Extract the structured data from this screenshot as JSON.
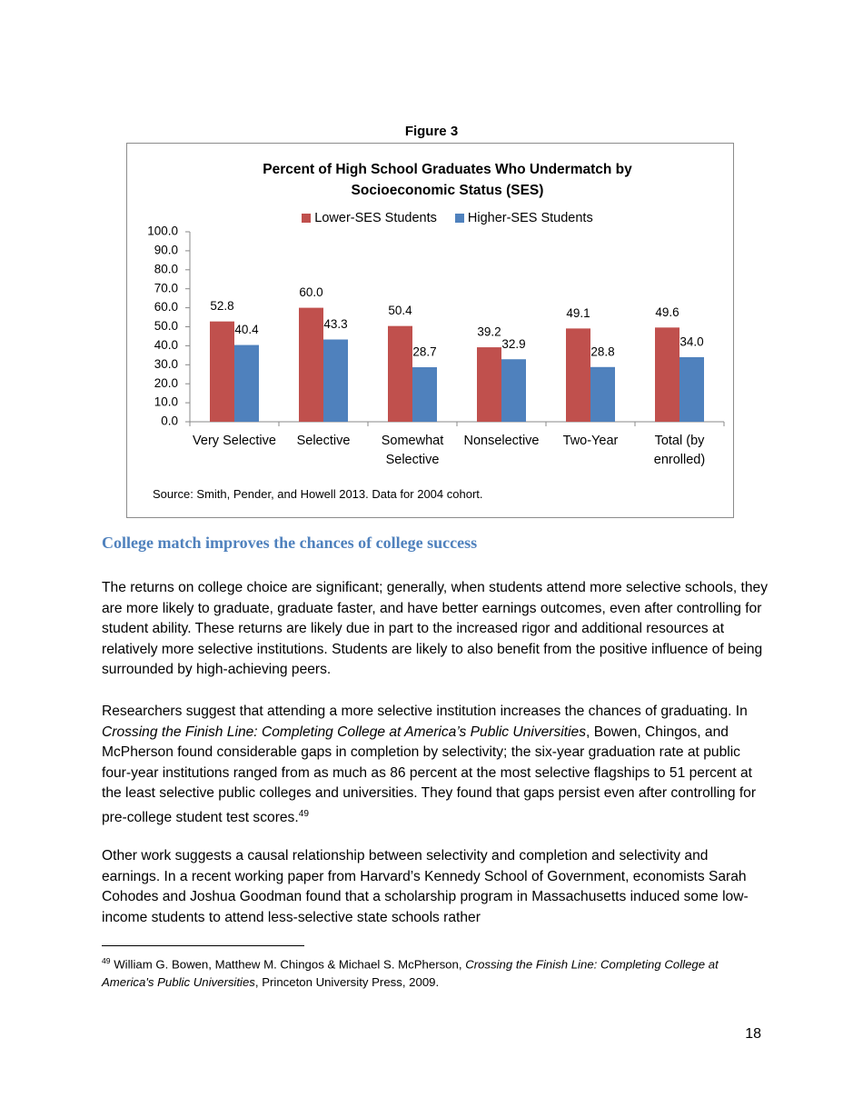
{
  "figure_label": "Figure 3",
  "chart_data": {
    "type": "bar",
    "title": "Percent of High School Graduates Who Undermatch by Socioeconomic Status (SES)",
    "categories": [
      "Very Selective",
      "Selective",
      "Somewhat Selective",
      "Nonselective",
      "Two-Year",
      "Total (by enrolled)"
    ],
    "series": [
      {
        "name": "Lower-SES Students",
        "color": "#c0504d",
        "values": [
          52.8,
          60,
          50.4,
          39.2,
          49.1,
          49.6
        ],
        "value_labels": [
          "52.8",
          "60.0",
          "50.4",
          "39.2",
          "49.1",
          "49.6"
        ]
      },
      {
        "name": "Higher-SES Students",
        "color": "#4f81bd",
        "values": [
          40.4,
          43.3,
          28.7,
          32.9,
          28.8,
          34
        ],
        "value_labels": [
          "40.4",
          "43.3",
          "28.7",
          "32.9",
          "28.8",
          "34.0"
        ]
      }
    ],
    "ylim": [
      0,
      100
    ],
    "yticks": [
      {
        "value": 0,
        "label": "0.0"
      },
      {
        "value": 10,
        "label": "10.0"
      },
      {
        "value": 20,
        "label": "20.0"
      },
      {
        "value": 30,
        "label": "30.0"
      },
      {
        "value": 40,
        "label": "40.0"
      },
      {
        "value": 50,
        "label": "50.0"
      },
      {
        "value": 60,
        "label": "60.0"
      },
      {
        "value": 70,
        "label": "70.0"
      },
      {
        "value": 80,
        "label": "80.0"
      },
      {
        "value": 90,
        "label": "90.0"
      },
      {
        "value": 100,
        "label": "100.0"
      }
    ],
    "legend": "top",
    "source": "Source: Smith, Pender, and Howell 2013. Data for 2004 cohort."
  },
  "heading": "College match improves the chances of college success",
  "paragraphs": [
    {
      "runs": [
        {
          "text": "The returns on college choice are significant; generally, when students attend more selective schools, they are more likely to graduate, graduate faster, and have better earnings outcomes, even after controlling for student ability. These returns are likely due in part to the increased rigor and additional resources at relatively more selective institutions. Students are likely to also benefit from the positive influence of being surrounded by high-achieving peers."
        }
      ]
    },
    {
      "runs": [
        {
          "text": "Researchers suggest that attending a more selective institution increases the chances of graduating.  In "
        },
        {
          "text": "Crossing the Finish Line: Completing College at America’s Public Universities",
          "italic": true
        },
        {
          "text": ", Bowen, Chingos, and McPherson found considerable gaps in completion by selectivity; the six-year graduation rate at public four-year institutions ranged from as much as 86 percent at the most selective flagships to 51 percent at the least selective public colleges and universities. They found that gaps persist even after controlling for pre-college student test scores."
        },
        {
          "text": "49",
          "sup": true
        }
      ]
    },
    {
      "runs": [
        {
          "text": "Other work suggests a causal relationship between selectivity and completion and selectivity and earnings.  In a recent working paper from Harvard’s Kennedy School of Government, economists Sarah Cohodes and Joshua Goodman found that a scholarship program in Massachusetts induced some low-income students to attend less-selective state schools rather"
        }
      ]
    }
  ],
  "footnote": {
    "runs": [
      {
        "text": "49",
        "sup": true
      },
      {
        "text": " William G. Bowen, Matthew M. Chingos & Michael S. McPherson, "
      },
      {
        "text": "Crossing the Finish Line: Completing College at America's Public Universities",
        "italic": true
      },
      {
        "text": ", Princeton University Press, 2009."
      }
    ]
  },
  "page_number": "18"
}
